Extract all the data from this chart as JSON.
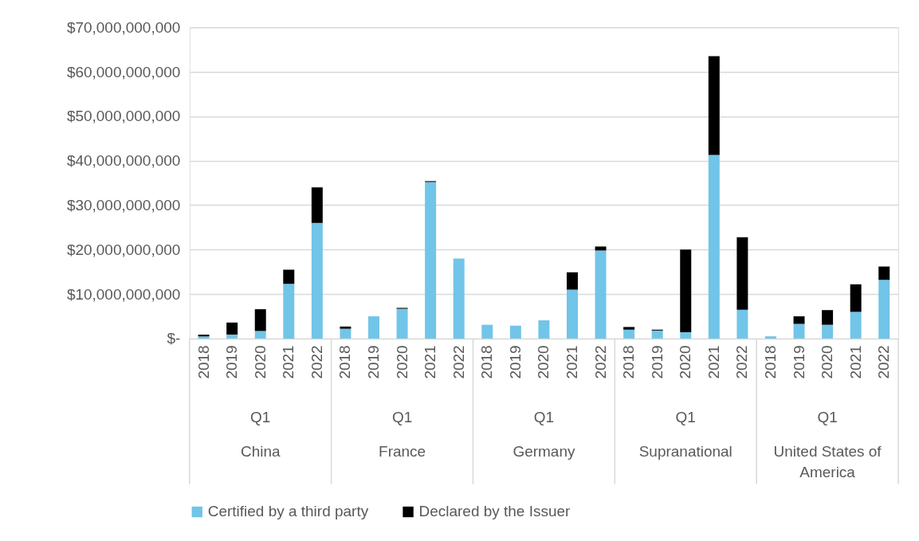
{
  "chart_data": {
    "type": "bar",
    "stacked": true,
    "grid": "y",
    "legend": "bottom",
    "categories": [
      "2018",
      "2019",
      "2020",
      "2021",
      "2022",
      "2018",
      "2019",
      "2020",
      "2021",
      "2022",
      "2018",
      "2019",
      "2020",
      "2021",
      "2022",
      "2018",
      "2019",
      "2020",
      "2021",
      "2022",
      "2018",
      "2019",
      "2020",
      "2021",
      "2022"
    ],
    "annotations": [
      "Q1",
      "China",
      "Q1",
      "France",
      "Q1",
      "Germany",
      "Q1",
      "Supranational",
      "Q1",
      "United States of America"
    ],
    "series": [
      {
        "name": "Certified by a third party",
        "color": "#71c5e8",
        "values": [
          500000000,
          900000000,
          1700000000,
          12300000000,
          26000000000,
          2200000000,
          5000000000,
          6700000000,
          35200000000,
          18000000000,
          3100000000,
          2900000000,
          4100000000,
          11000000000,
          19800000000,
          2000000000,
          1800000000,
          1400000000,
          41300000000,
          6500000000,
          500000000,
          3300000000,
          3100000000,
          6000000000,
          13200000000
        ]
      },
      {
        "name": "Declared by the Issuer",
        "color": "#000000",
        "values": [
          400000000,
          2700000000,
          4900000000,
          3200000000,
          8000000000,
          500000000,
          0,
          200000000,
          200000000,
          0,
          0,
          0,
          0,
          3900000000,
          900000000,
          600000000,
          200000000,
          18600000000,
          22200000000,
          16300000000,
          0,
          1700000000,
          3300000000,
          6200000000,
          3000000000
        ]
      }
    ],
    "ylim": [
      0,
      70000000000
    ],
    "yticks": [
      {
        "value": 0,
        "label": "$-"
      },
      {
        "value": 10000000000,
        "label": "$10,000,000,000"
      },
      {
        "value": 20000000000,
        "label": "$20,000,000,000"
      },
      {
        "value": 30000000000,
        "label": "$30,000,000,000"
      },
      {
        "value": 40000000000,
        "label": "$40,000,000,000"
      },
      {
        "value": 50000000000,
        "label": "$50,000,000,000"
      },
      {
        "value": 60000000000,
        "label": "$60,000,000,000"
      },
      {
        "value": 70000000000,
        "label": "$70,000,000,000"
      }
    ]
  }
}
